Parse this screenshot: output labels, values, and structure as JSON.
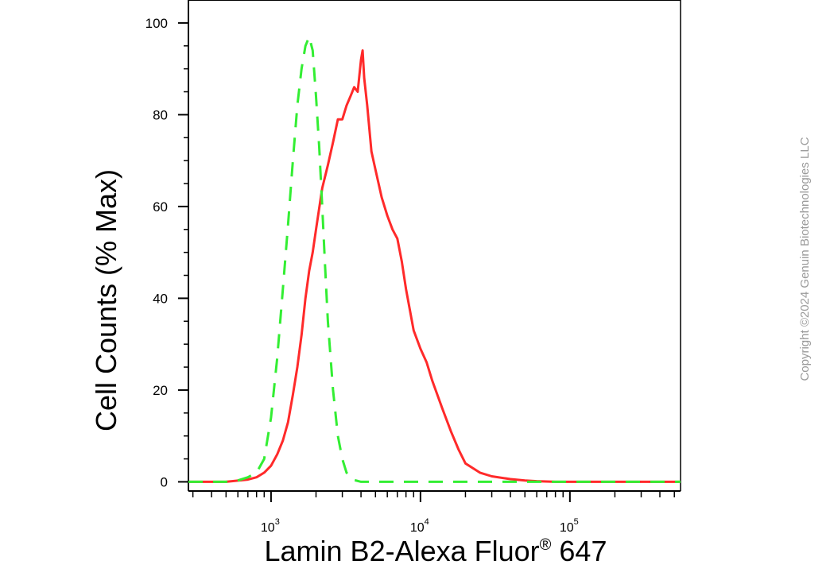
{
  "chart_data": {
    "type": "line",
    "title": "",
    "xlabel": "Lamin B2-Alexa Fluor® 647",
    "xlabel_parts": {
      "main": "Lamin B2-Alexa Fluor",
      "sup": "®",
      "tail": " 647"
    },
    "ylabel": "Cell Counts (% Max)",
    "x_scale": "log",
    "xlim": [
      280,
      550000
    ],
    "ylim": [
      -2,
      105
    ],
    "y_ticks": [
      0,
      20,
      40,
      60,
      80,
      100
    ],
    "y_tick_labels": [
      "0",
      "20",
      "40",
      "60",
      "80",
      "100"
    ],
    "x_major_ticks": [
      {
        "value": 1000,
        "base": "10",
        "exp": "3"
      },
      {
        "value": 10000,
        "base": "10",
        "exp": "4"
      },
      {
        "value": 100000,
        "base": "10",
        "exp": "5"
      }
    ],
    "grid": false,
    "legend": "none",
    "series": [
      {
        "color": "#ff2a2a",
        "style": "solid",
        "x": [
          280,
          500,
          700,
          800,
          900,
          1000,
          1100,
          1200,
          1300,
          1400,
          1500,
          1600,
          1700,
          1800,
          1900,
          2000,
          2200,
          2400,
          2600,
          2800,
          3000,
          3200,
          3400,
          3600,
          3800,
          4000,
          4100,
          4200,
          4400,
          4700,
          5000,
          5500,
          6000,
          6500,
          7000,
          7500,
          8000,
          9000,
          10000,
          11000,
          12000,
          14000,
          16000,
          18000,
          20000,
          25000,
          30000,
          40000,
          50000,
          60000,
          80000,
          100000,
          200000,
          550000
        ],
        "y": [
          0,
          0,
          0.5,
          1,
          2,
          3.5,
          6,
          9,
          13,
          19,
          25,
          32,
          40,
          46,
          50,
          55,
          64,
          69,
          74,
          79,
          79,
          82,
          84,
          86,
          85,
          92,
          94,
          88,
          82,
          72,
          68,
          62,
          58,
          55,
          53,
          48,
          42,
          33,
          29,
          26,
          22,
          16,
          11,
          7,
          4,
          2,
          1.2,
          0.6,
          0.3,
          0.15,
          0,
          0,
          0,
          0
        ]
      },
      {
        "color": "#33ee33",
        "style": "dashed",
        "x": [
          280,
          500,
          600,
          700,
          800,
          900,
          1000,
          1100,
          1200,
          1300,
          1400,
          1500,
          1600,
          1700,
          1800,
          1900,
          2000,
          2100,
          2200,
          2300,
          2400,
          2600,
          2800,
          3000,
          3200,
          3500,
          4000,
          550000
        ],
        "y": [
          0,
          0,
          0.3,
          1,
          2,
          5,
          14,
          27,
          42,
          56,
          70,
          82,
          90,
          95,
          97,
          94,
          84,
          73,
          60,
          47,
          35,
          20,
          10,
          5,
          2,
          0.5,
          0,
          0
        ]
      }
    ]
  },
  "watermark": {
    "text": "Copyright ©2024 Genuin Biotechnologies LLC"
  }
}
